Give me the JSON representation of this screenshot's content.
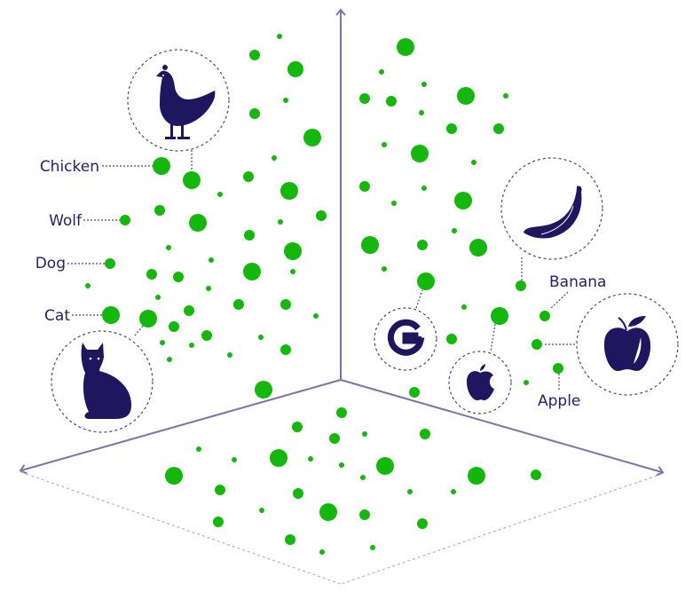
{
  "colors": {
    "dot": "#14b80c",
    "ink": "#1e1760",
    "axis": "#7a76a8",
    "dash": "#4a4685"
  },
  "labels": {
    "chicken": "Chicken",
    "wolf": "Wolf",
    "dog": "Dog",
    "cat": "Cat",
    "banana": "Banana",
    "apple": "Apple"
  },
  "icons": [
    "chicken-icon",
    "cat-icon",
    "google-g-icon",
    "apple-logo-icon",
    "banana-icon",
    "apple-fruit-icon"
  ]
}
